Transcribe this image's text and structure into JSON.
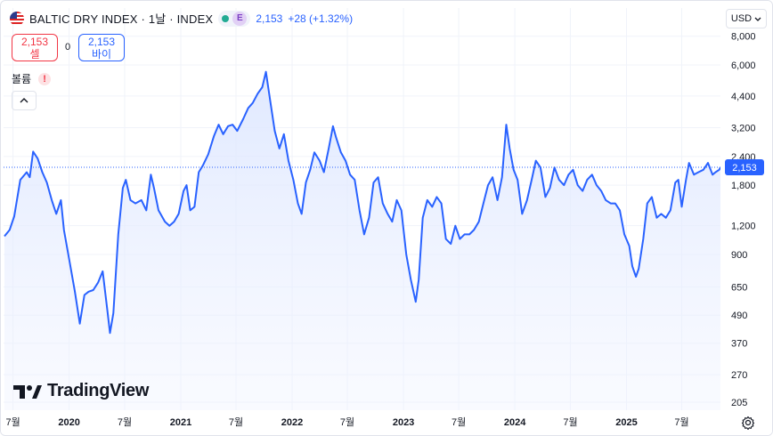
{
  "header": {
    "symbol": "BALTIC DRY INDEX · 1날 · INDEX",
    "exchange_badge": "E",
    "last_price": "2,153",
    "change": "+28 (+1.32%)"
  },
  "trade": {
    "sell_price": "2,153",
    "sell_label": "셀",
    "buy_price": "2,153",
    "buy_label": "바이",
    "spread": "0"
  },
  "volume": {
    "label": "볼륨",
    "warning": "!"
  },
  "currency": {
    "label": "USD"
  },
  "logo": {
    "text": "TradingView"
  },
  "colors": {
    "line": "#2962ff",
    "fill_top": "#dce6ff",
    "price_label_bg": "#2962ff",
    "grid": "#f0f3fa"
  },
  "icons": {
    "flag": "us-flag-icon",
    "settings": "gear-icon",
    "collapse": "chevron-up-icon",
    "currency_menu": "chevron-down-icon"
  },
  "chart_data": {
    "type": "area",
    "scale": "log",
    "y_ticks": [
      8000,
      6000,
      4400,
      3200,
      2400,
      1800,
      1200,
      900,
      650,
      490,
      370,
      270,
      205
    ],
    "y_tick_labels": [
      "8,000",
      "6,000",
      "4,400",
      "3,200",
      "2,400",
      "1,800",
      "1,200",
      "900",
      "650",
      "490",
      "370",
      "270",
      "205"
    ],
    "x_ticks": [
      "2019-07",
      "2020-01",
      "2020-07",
      "2021-01",
      "2021-07",
      "2022-01",
      "2022-07",
      "2023-01",
      "2023-07",
      "2024-01",
      "2024-07",
      "2025-01",
      "2025-07"
    ],
    "x_tick_labels": [
      "7월",
      "2020",
      "7월",
      "2021",
      "7월",
      "2022",
      "7월",
      "2023",
      "7월",
      "2024",
      "7월",
      "2025",
      "7월"
    ],
    "last_value": 2153,
    "last_value_label": "2,153",
    "series": [
      {
        "values": [
          [
            "2019-06-03",
            1080
          ],
          [
            "2019-06-20",
            1150
          ],
          [
            "2019-07-05",
            1320
          ],
          [
            "2019-07-25",
            1900
          ],
          [
            "2019-08-15",
            2050
          ],
          [
            "2019-08-25",
            1950
          ],
          [
            "2019-09-05",
            2520
          ],
          [
            "2019-09-20",
            2350
          ],
          [
            "2019-10-05",
            2050
          ],
          [
            "2019-10-20",
            1850
          ],
          [
            "2019-11-05",
            1550
          ],
          [
            "2019-11-20",
            1350
          ],
          [
            "2019-12-05",
            1550
          ],
          [
            "2019-12-15",
            1150
          ],
          [
            "2020-01-01",
            860
          ],
          [
            "2020-01-20",
            620
          ],
          [
            "2020-02-05",
            450
          ],
          [
            "2020-02-20",
            600
          ],
          [
            "2020-03-05",
            620
          ],
          [
            "2020-03-20",
            630
          ],
          [
            "2020-04-05",
            680
          ],
          [
            "2020-04-20",
            760
          ],
          [
            "2020-05-05",
            520
          ],
          [
            "2020-05-14",
            410
          ],
          [
            "2020-05-25",
            500
          ],
          [
            "2020-06-10",
            1100
          ],
          [
            "2020-06-25",
            1750
          ],
          [
            "2020-07-05",
            1900
          ],
          [
            "2020-07-20",
            1550
          ],
          [
            "2020-08-05",
            1500
          ],
          [
            "2020-08-25",
            1550
          ],
          [
            "2020-09-10",
            1400
          ],
          [
            "2020-09-25",
            2000
          ],
          [
            "2020-10-05",
            1750
          ],
          [
            "2020-10-20",
            1400
          ],
          [
            "2020-11-10",
            1250
          ],
          [
            "2020-11-25",
            1200
          ],
          [
            "2020-12-10",
            1250
          ],
          [
            "2020-12-25",
            1350
          ],
          [
            "2021-01-10",
            1700
          ],
          [
            "2021-01-20",
            1800
          ],
          [
            "2021-02-01",
            1400
          ],
          [
            "2021-02-15",
            1450
          ],
          [
            "2021-03-01",
            2050
          ],
          [
            "2021-03-15",
            2200
          ],
          [
            "2021-04-01",
            2450
          ],
          [
            "2021-04-20",
            2950
          ],
          [
            "2021-05-05",
            3300
          ],
          [
            "2021-05-20",
            3000
          ],
          [
            "2021-06-05",
            3250
          ],
          [
            "2021-06-20",
            3300
          ],
          [
            "2021-07-05",
            3100
          ],
          [
            "2021-07-25",
            3500
          ],
          [
            "2021-08-10",
            3900
          ],
          [
            "2021-08-25",
            4100
          ],
          [
            "2021-09-10",
            4500
          ],
          [
            "2021-09-25",
            4800
          ],
          [
            "2021-10-07",
            5600
          ],
          [
            "2021-10-20",
            4300
          ],
          [
            "2021-11-05",
            3100
          ],
          [
            "2021-11-20",
            2600
          ],
          [
            "2021-12-05",
            3000
          ],
          [
            "2021-12-20",
            2300
          ],
          [
            "2022-01-05",
            1900
          ],
          [
            "2022-01-20",
            1500
          ],
          [
            "2022-02-01",
            1350
          ],
          [
            "2022-02-15",
            1850
          ],
          [
            "2022-03-01",
            2100
          ],
          [
            "2022-03-15",
            2500
          ],
          [
            "2022-04-01",
            2300
          ],
          [
            "2022-04-15",
            2050
          ],
          [
            "2022-05-01",
            2600
          ],
          [
            "2022-05-15",
            3250
          ],
          [
            "2022-05-25",
            2900
          ],
          [
            "2022-06-10",
            2500
          ],
          [
            "2022-06-25",
            2300
          ],
          [
            "2022-07-10",
            2000
          ],
          [
            "2022-07-25",
            1900
          ],
          [
            "2022-08-10",
            1400
          ],
          [
            "2022-08-25",
            1100
          ],
          [
            "2022-09-10",
            1300
          ],
          [
            "2022-09-25",
            1850
          ],
          [
            "2022-10-10",
            1950
          ],
          [
            "2022-10-25",
            1500
          ],
          [
            "2022-11-10",
            1350
          ],
          [
            "2022-11-25",
            1250
          ],
          [
            "2022-12-10",
            1550
          ],
          [
            "2022-12-25",
            1400
          ],
          [
            "2023-01-10",
            900
          ],
          [
            "2023-01-25",
            700
          ],
          [
            "2023-02-10",
            560
          ],
          [
            "2023-02-20",
            700
          ],
          [
            "2023-03-05",
            1300
          ],
          [
            "2023-03-20",
            1550
          ],
          [
            "2023-04-05",
            1450
          ],
          [
            "2023-04-20",
            1600
          ],
          [
            "2023-05-05",
            1500
          ],
          [
            "2023-05-20",
            1050
          ],
          [
            "2023-06-05",
            1000
          ],
          [
            "2023-06-20",
            1200
          ],
          [
            "2023-07-05",
            1050
          ],
          [
            "2023-07-20",
            1100
          ],
          [
            "2023-08-05",
            1100
          ],
          [
            "2023-08-20",
            1150
          ],
          [
            "2023-09-05",
            1250
          ],
          [
            "2023-09-20",
            1500
          ],
          [
            "2023-10-05",
            1800
          ],
          [
            "2023-10-20",
            1950
          ],
          [
            "2023-11-05",
            1550
          ],
          [
            "2023-11-20",
            1950
          ],
          [
            "2023-12-04",
            3300
          ],
          [
            "2023-12-15",
            2600
          ],
          [
            "2023-12-28",
            2100
          ],
          [
            "2024-01-10",
            1900
          ],
          [
            "2024-01-25",
            1350
          ],
          [
            "2024-02-10",
            1550
          ],
          [
            "2024-02-25",
            1900
          ],
          [
            "2024-03-10",
            2300
          ],
          [
            "2024-03-25",
            2150
          ],
          [
            "2024-04-10",
            1600
          ],
          [
            "2024-04-25",
            1750
          ],
          [
            "2024-05-10",
            2150
          ],
          [
            "2024-05-25",
            1900
          ],
          [
            "2024-06-10",
            1800
          ],
          [
            "2024-06-25",
            2000
          ],
          [
            "2024-07-10",
            2100
          ],
          [
            "2024-07-25",
            1800
          ],
          [
            "2024-08-10",
            1700
          ],
          [
            "2024-08-25",
            1900
          ],
          [
            "2024-09-10",
            2000
          ],
          [
            "2024-09-25",
            1800
          ],
          [
            "2024-10-10",
            1700
          ],
          [
            "2024-10-25",
            1550
          ],
          [
            "2024-11-10",
            1500
          ],
          [
            "2024-11-25",
            1500
          ],
          [
            "2024-12-10",
            1400
          ],
          [
            "2024-12-25",
            1100
          ],
          [
            "2025-01-10",
            980
          ],
          [
            "2025-01-20",
            800
          ],
          [
            "2025-02-01",
            720
          ],
          [
            "2025-02-10",
            780
          ],
          [
            "2025-02-25",
            1050
          ],
          [
            "2025-03-10",
            1500
          ],
          [
            "2025-03-25",
            1600
          ],
          [
            "2025-04-10",
            1300
          ],
          [
            "2025-04-25",
            1350
          ],
          [
            "2025-05-10",
            1300
          ],
          [
            "2025-05-25",
            1400
          ],
          [
            "2025-06-10",
            1850
          ],
          [
            "2025-06-20",
            1900
          ],
          [
            "2025-07-01",
            1450
          ],
          [
            "2025-07-15",
            1900
          ],
          [
            "2025-07-25",
            2250
          ],
          [
            "2025-08-10",
            2000
          ],
          [
            "2025-08-25",
            2050
          ],
          [
            "2025-09-10",
            2100
          ],
          [
            "2025-09-25",
            2250
          ],
          [
            "2025-10-10",
            2000
          ],
          [
            "2025-10-20",
            2050
          ],
          [
            "2025-11-01",
            2100
          ],
          [
            "2025-11-05",
            2153
          ]
        ]
      }
    ]
  }
}
